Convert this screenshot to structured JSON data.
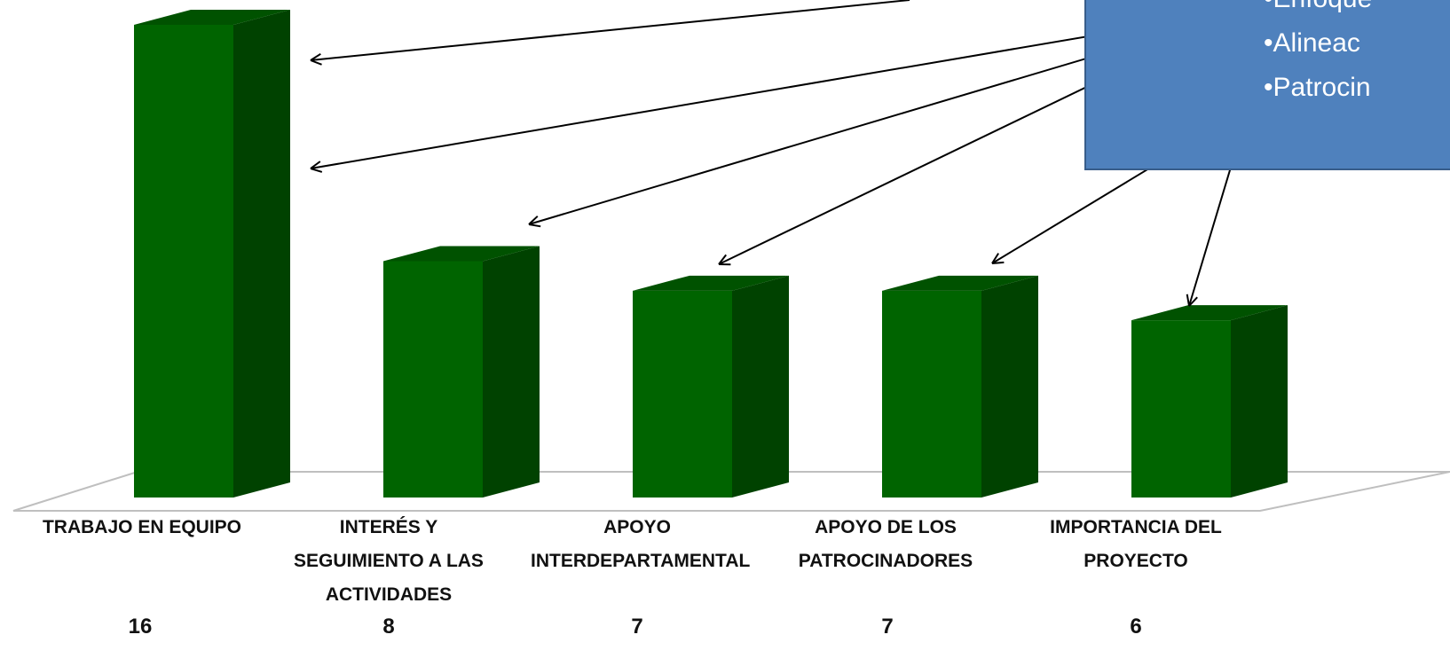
{
  "chart_data": {
    "type": "bar",
    "categories": [
      "Trabajo en Equipo",
      "Interés y Seguimiento a las Actividades",
      "Apoyo Interdepartamental",
      "Apoyo de los Patrocinadores",
      "Importancia del proyecto"
    ],
    "values": [
      16,
      8,
      7,
      7,
      6
    ],
    "value_labels": [
      "16",
      "8",
      "7",
      "7",
      "6"
    ],
    "ylim": [
      0,
      16
    ],
    "grid": false,
    "legend": "none",
    "style": "3d-column",
    "colors": {
      "bar_front": "#006400",
      "bar_side": "#004200",
      "bar_top": "#005200",
      "floor": "#bfbfbf"
    }
  },
  "callout": {
    "items": [
      "Enfoque",
      "Alineac",
      "Patrocin"
    ],
    "fill_color": "#4f81bd",
    "border_color": "#385d8a"
  }
}
